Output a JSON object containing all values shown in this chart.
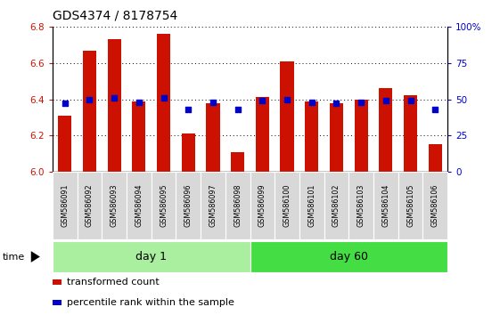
{
  "title": "GDS4374 / 8178754",
  "samples": [
    "GSM586091",
    "GSM586092",
    "GSM586093",
    "GSM586094",
    "GSM586095",
    "GSM586096",
    "GSM586097",
    "GSM586098",
    "GSM586099",
    "GSM586100",
    "GSM586101",
    "GSM586102",
    "GSM586103",
    "GSM586104",
    "GSM586105",
    "GSM586106"
  ],
  "bar_values": [
    6.31,
    6.67,
    6.73,
    6.39,
    6.76,
    6.21,
    6.38,
    6.11,
    6.41,
    6.61,
    6.39,
    6.38,
    6.4,
    6.46,
    6.42,
    6.15
  ],
  "percentile_values": [
    47,
    50,
    51,
    48,
    51,
    43,
    48,
    43,
    49,
    50,
    48,
    47,
    48,
    49,
    49,
    43
  ],
  "groups": [
    {
      "label": "day 1",
      "start": 0,
      "end": 8,
      "color": "#aaeea0"
    },
    {
      "label": "day 60",
      "start": 8,
      "end": 16,
      "color": "#44dd44"
    }
  ],
  "ylim_left": [
    6.0,
    6.8
  ],
  "ylim_right": [
    0,
    100
  ],
  "yticks_left": [
    6.0,
    6.2,
    6.4,
    6.6,
    6.8
  ],
  "yticks_right": [
    0,
    25,
    50,
    75,
    100
  ],
  "bar_color": "#cc1100",
  "dot_color": "#0000cc",
  "background_color": "#ffffff",
  "bar_width": 0.55,
  "legend_items": [
    "transformed count",
    "percentile rank within the sample"
  ],
  "time_label": "time",
  "title_fontsize": 10,
  "tick_fontsize": 7.5,
  "label_fontsize": 8
}
